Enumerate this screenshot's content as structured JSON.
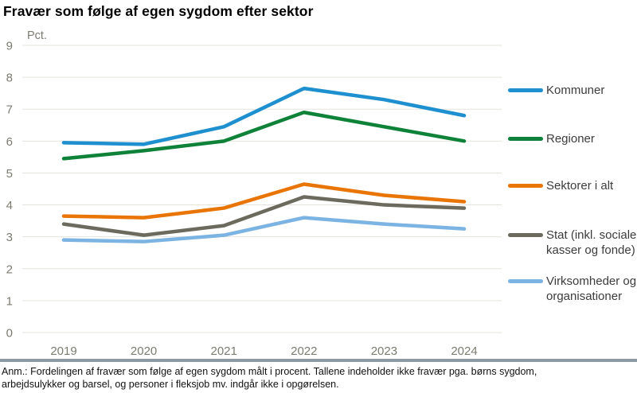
{
  "chart_data": {
    "type": "line",
    "title": "Fravær som følge af egen sygdom efter sektor",
    "unit_label": "Pct.",
    "x": [
      "2019",
      "2020",
      "2021",
      "2022",
      "2023",
      "2024"
    ],
    "ylim": [
      0,
      9
    ],
    "ytick_step": 1,
    "grid": "horizontal",
    "legend_position": "right",
    "series": [
      {
        "name": "Kommuner",
        "color": "#1e8fcf",
        "values": [
          5.95,
          5.9,
          6.45,
          7.65,
          7.3,
          6.8
        ]
      },
      {
        "name": "Regioner",
        "color": "#0e8238",
        "values": [
          5.45,
          5.7,
          6.0,
          6.9,
          6.45,
          6.0
        ]
      },
      {
        "name": "Sektorer i alt",
        "color": "#e97506",
        "values": [
          3.65,
          3.6,
          3.9,
          4.65,
          4.3,
          4.1
        ]
      },
      {
        "name": "Stat (inkl. sociale kasser og fonde)",
        "color": "#6b6a5d",
        "values": [
          3.4,
          3.05,
          3.35,
          4.25,
          4.0,
          3.9
        ]
      },
      {
        "name": "Virksomheder og organisationer",
        "color": "#7bb3e3",
        "values": [
          2.9,
          2.85,
          3.05,
          3.6,
          3.4,
          3.25
        ]
      }
    ]
  },
  "legend": {
    "items": [
      {
        "id": "kommuner",
        "lines": [
          "Kommuner"
        ]
      },
      {
        "id": "regioner",
        "lines": [
          "Regioner"
        ]
      },
      {
        "id": "sektorer-i-alt",
        "lines": [
          "Sektorer i alt"
        ]
      },
      {
        "id": "stat",
        "lines": [
          "Stat (inkl. sociale",
          "kasser og fonde)"
        ]
      },
      {
        "id": "virksomheder",
        "lines": [
          "Virksomheder og",
          "organisationer"
        ]
      }
    ]
  },
  "footer": {
    "note_lines": [
      "Anm.: Fordelingen af fravær som følge af egen sygdom målt i procent. Tallene indeholder ikke fravær pga. børns sygdom,",
      "arbejdsulykker og barsel, og personer i fleksjob mv. indgår ikke i opgørelsen."
    ]
  },
  "style": {
    "grid_color": "#e5e3db",
    "axis_text_color": "#7c7b6f",
    "separator_color": "#8c9aa4"
  }
}
